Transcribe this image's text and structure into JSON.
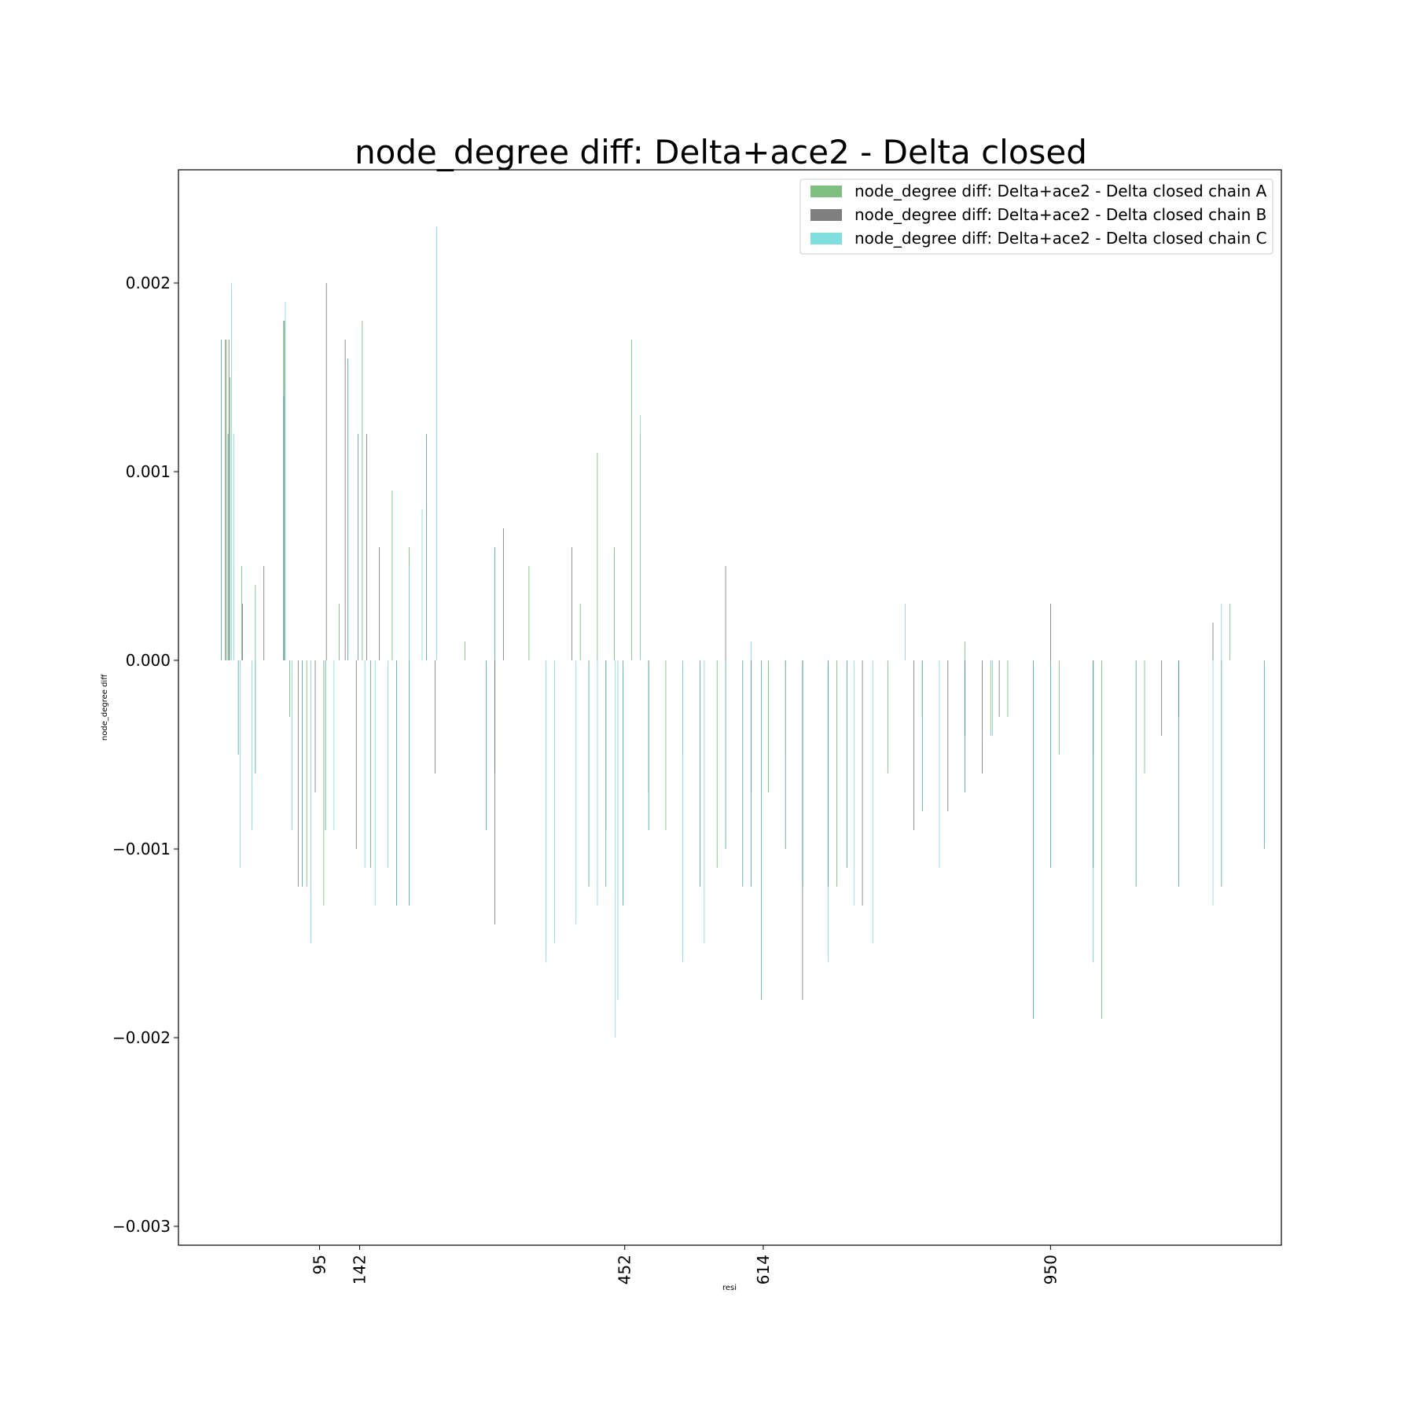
{
  "chart_data": {
    "type": "bar",
    "title": "node_degree diff: Delta+ace2 - Delta closed",
    "xlabel": "resi",
    "ylabel": "node_degree diff",
    "xlim": [
      -70,
      1220
    ],
    "ylim": [
      -0.0031,
      0.0026
    ],
    "yticks": [
      -0.003,
      -0.002,
      -0.001,
      0.0,
      0.001,
      0.002
    ],
    "ytick_labels": [
      "−0.003",
      "−0.002",
      "−0.001",
      "0.000",
      "0.001",
      "0.002"
    ],
    "xticks": [
      95,
      142,
      452,
      614,
      950
    ],
    "xtick_labels": [
      "95",
      "142",
      "452",
      "614",
      "950"
    ],
    "grid": false,
    "legend_position": "top-right",
    "series": [
      {
        "name": "node_degree diff: Delta+ace2 - Delta closed chain A",
        "color": "#4caf50",
        "x": [
          -14,
          -10,
          4,
          20,
          53,
          60,
          80,
          100,
          118,
          145,
          180,
          200,
          265,
          300,
          340,
          400,
          420,
          440,
          460,
          500,
          560,
          620,
          640,
          700,
          760,
          800,
          850,
          880,
          900,
          960,
          1000,
          1010,
          1060,
          1100,
          1160
        ],
        "values": [
          0.0017,
          0.0015,
          0.0005,
          0.0004,
          0.0018,
          -0.0003,
          -0.0012,
          -0.0013,
          0.0003,
          0.0018,
          0.0009,
          0.0006,
          0.0001,
          -0.0006,
          0.0005,
          0.0003,
          0.0011,
          0.0006,
          0.0017,
          -0.0009,
          -0.0011,
          -0.0007,
          -0.0005,
          -0.0012,
          -0.0006,
          -0.0003,
          0.0001,
          -0.0004,
          -0.0003,
          -0.0005,
          -0.0016,
          -0.0019,
          -0.0006,
          -0.0003,
          0.0003
        ]
      },
      {
        "name": "node_degree diff: Delta+ace2 - Delta closed chain B",
        "color": "#555555",
        "x": [
          -15,
          -11,
          5,
          30,
          54,
          70,
          90,
          103,
          125,
          138,
          150,
          165,
          230,
          300,
          310,
          390,
          430,
          470,
          480,
          520,
          570,
          600,
          660,
          730,
          790,
          830,
          850,
          870,
          890,
          950,
          1000,
          1080,
          1140
        ],
        "values": [
          0.0017,
          0.0017,
          0.0003,
          0.0005,
          0.0018,
          -0.0012,
          -0.0007,
          0.002,
          0.0017,
          -0.001,
          0.0012,
          0.0006,
          -0.0006,
          -0.0014,
          0.0007,
          0.0006,
          -0.0009,
          0.0012,
          -0.0007,
          -0.0005,
          0.0005,
          -0.0007,
          -0.0018,
          -0.0013,
          -0.0009,
          -0.0008,
          -0.0004,
          -0.0006,
          -0.0003,
          0.0003,
          -0.0005,
          -0.0004,
          0.0002
        ]
      },
      {
        "name": "node_degree diff: Delta+ace2 - Delta closed chain C",
        "color": "#5fd3d3",
        "x": [
          -8,
          -5,
          2,
          16,
          55,
          63,
          85,
          112,
          148,
          160,
          175,
          200,
          215,
          232,
          360,
          370,
          395,
          420,
          441,
          444,
          470,
          520,
          545,
          600,
          690,
          720,
          742,
          780,
          820,
          882,
          1000,
          1140,
          1150
        ],
        "values": [
          0.002,
          0.0012,
          -0.0011,
          -0.0009,
          0.0019,
          -0.0009,
          -0.0015,
          -0.0009,
          -0.0011,
          -0.0013,
          -0.0011,
          0.0005,
          0.0008,
          0.0023,
          -0.0016,
          -0.0015,
          -0.0014,
          -0.0013,
          -0.002,
          -0.0018,
          0.0013,
          -0.0016,
          -0.0015,
          0.0001,
          -0.0016,
          -0.0013,
          -0.0015,
          0.0003,
          -0.0011,
          -0.0004,
          -0.0016,
          -0.0013,
          0.0003
        ]
      },
      {
        "name": "",
        "color": "#1f8f80",
        "x": [
          -20,
          -12,
          0,
          20,
          53,
          75,
          102,
          128,
          140,
          155,
          185,
          200,
          220,
          290,
          300,
          410,
          430,
          450,
          480,
          540,
          570,
          590,
          600,
          612,
          640,
          660,
          690,
          712,
          800,
          850,
          930,
          950,
          1000,
          1050,
          1100,
          1150,
          1200
        ],
        "values": [
          0.0017,
          0.0012,
          -0.0005,
          -0.0006,
          0.0014,
          -0.0012,
          -0.0009,
          0.0016,
          0.0012,
          -0.0011,
          -0.0013,
          -0.0013,
          0.0012,
          -0.0009,
          0.0006,
          -0.0012,
          -0.0012,
          -0.0013,
          -0.0009,
          -0.0012,
          -0.001,
          -0.0012,
          -0.0012,
          -0.0018,
          -0.001,
          -0.0012,
          -0.0012,
          -0.0011,
          -0.0008,
          -0.0007,
          -0.0019,
          -0.0011,
          -0.0011,
          -0.0012,
          -0.0012,
          -0.0012,
          -0.001
        ]
      }
    ],
    "legend": [
      {
        "label": "node_degree diff: Delta+ace2 - Delta closed chain A",
        "color": "#7fbf7f"
      },
      {
        "label": "node_degree diff: Delta+ace2 - Delta closed chain B",
        "color": "#7f7f7f"
      },
      {
        "label": "node_degree diff: Delta+ace2 - Delta closed chain C",
        "color": "#7fdede"
      }
    ],
    "bars": {
      "fill_color": "#1f8f80",
      "gaps": [
        [
          50,
          60
        ],
        [
          230,
          230
        ],
        [
          740,
          755
        ],
        [
          800,
          810
        ],
        [
          990,
          1020
        ]
      ]
    }
  }
}
